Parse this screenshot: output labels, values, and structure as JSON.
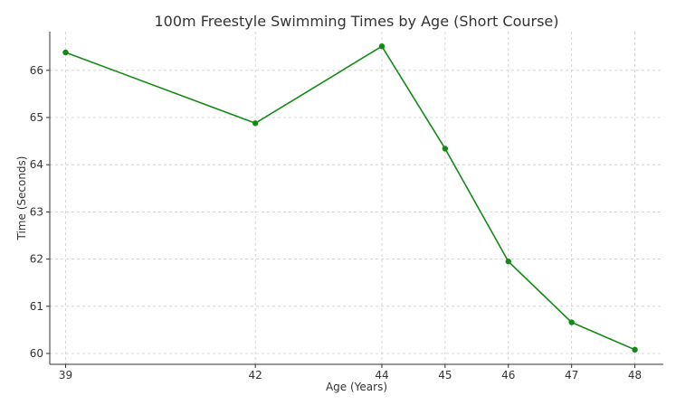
{
  "chart_data": {
    "type": "line",
    "title": "100m Freestyle Swimming Times by Age (Short Course)",
    "xlabel": "Age (Years)",
    "ylabel": "Time (Seconds)",
    "x": [
      39,
      42,
      44,
      45,
      46,
      47,
      48
    ],
    "x_tick_labels": [
      "39",
      "42",
      "44",
      "45",
      "46",
      "47",
      "48"
    ],
    "y": [
      66.38,
      64.88,
      66.51,
      64.34,
      61.95,
      60.66,
      60.08
    ],
    "y_ticks": [
      60,
      61,
      62,
      63,
      64,
      65,
      66
    ],
    "y_tick_labels": [
      "60",
      "61",
      "62",
      "63",
      "64",
      "65",
      "66"
    ],
    "xlim": [
      38.75,
      48.45
    ],
    "ylim": [
      59.77,
      66.82
    ],
    "grid": true,
    "line_color": "#138a13",
    "marker": "circle"
  }
}
